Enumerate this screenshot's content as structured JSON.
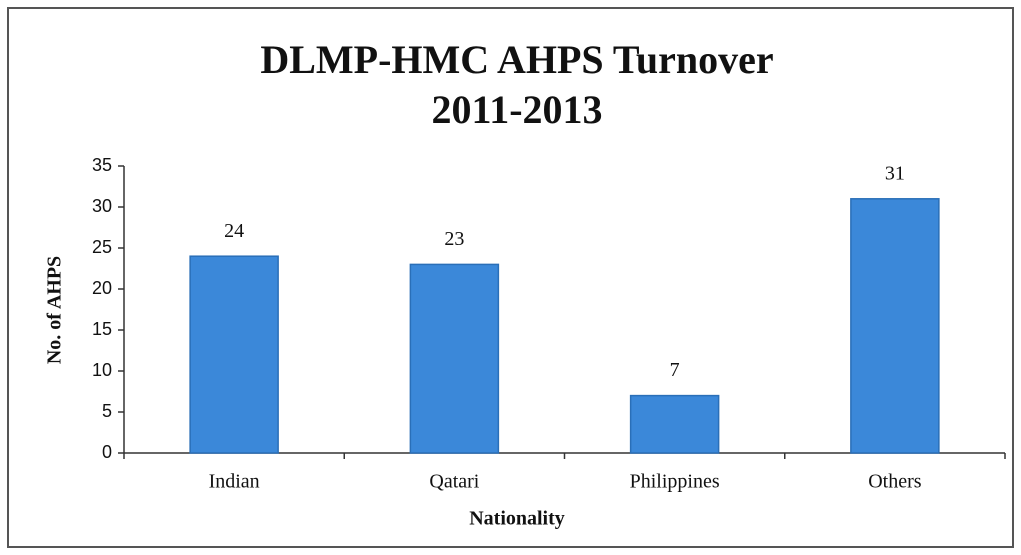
{
  "chart_data": {
    "type": "bar",
    "title": [
      "DLMP-HMC AHPS Turnover",
      "2011-2013"
    ],
    "categories": [
      "Indian",
      "Qatari",
      "Philippines",
      "Others"
    ],
    "values": [
      24,
      23,
      7,
      31
    ],
    "color": "#3b88d9",
    "xlabel": "Nationality",
    "ylabel": "No. of AHPS",
    "ylim": [
      0,
      35
    ],
    "yticks": [
      0,
      5,
      10,
      15,
      20,
      25,
      30,
      35
    ]
  }
}
